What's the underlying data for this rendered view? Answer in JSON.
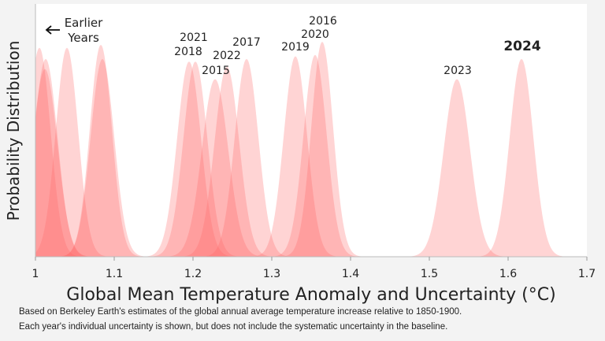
{
  "chart_data": {
    "type": "area",
    "xlabel": "Global Mean Temperature Anomaly and Uncertainty (°C)",
    "ylabel": "Probability Distribution",
    "xlim": [
      1.0,
      1.7
    ],
    "ylim": [
      0,
      34
    ],
    "xticks": [
      "1",
      "1.1",
      "1.2",
      "1.3",
      "1.4",
      "1.5",
      "1.6",
      "1.7"
    ],
    "fill_color": "#ff6464",
    "grid": false,
    "earlier_label": "Earlier Years",
    "earlier_years": [
      {
        "mean": 1.005,
        "uncertainty": 0.0142
      },
      {
        "mean": 1.012,
        "uncertainty": 0.0158
      },
      {
        "mean": 1.013,
        "uncertainty": 0.015
      },
      {
        "mean": 1.04,
        "uncertainty": 0.0142
      },
      {
        "mean": 1.083,
        "uncertainty": 0.014
      },
      {
        "mean": 1.085,
        "uncertainty": 0.015
      }
    ],
    "series": [
      {
        "name": "2021",
        "mean": 1.195,
        "uncertainty": 0.0152
      },
      {
        "name": "2018",
        "mean": 1.203,
        "uncertainty": 0.0152
      },
      {
        "name": "2015",
        "mean": 1.228,
        "uncertainty": 0.0167
      },
      {
        "name": "2022",
        "mean": 1.243,
        "uncertainty": 0.0156
      },
      {
        "name": "2017",
        "mean": 1.268,
        "uncertainty": 0.015
      },
      {
        "name": "2019",
        "mean": 1.33,
        "uncertainty": 0.0148
      },
      {
        "name": "2020",
        "mean": 1.355,
        "uncertainty": 0.0147
      },
      {
        "name": "2016",
        "mean": 1.364,
        "uncertainty": 0.0138
      },
      {
        "name": "2023",
        "mean": 1.535,
        "uncertainty": 0.0167
      },
      {
        "name": "2024",
        "mean": 1.617,
        "uncertainty": 0.015
      }
    ]
  },
  "footnote": [
    "Based on Berkeley Earth's estimates of the global annual average temperature increase relative to 1850-1900.",
    "Each year's individual uncertainty is shown, but does not include the systematic uncertainty in the baseline."
  ]
}
